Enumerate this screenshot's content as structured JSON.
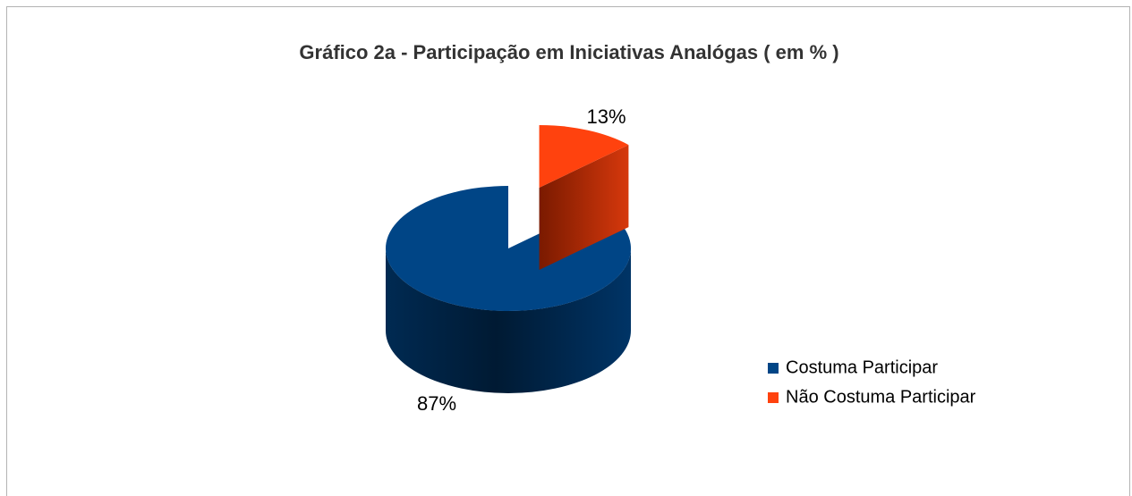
{
  "chart_data": {
    "type": "pie",
    "three_d": true,
    "title": "Gráfico 2a - Participação em Iniciativas Analógas ( em % )",
    "categories": [
      "Costuma Participar",
      "Não Costuma Participar"
    ],
    "values": [
      87,
      13
    ],
    "value_labels": [
      "87%",
      "13%"
    ],
    "colors": [
      "#004586",
      "#ff420e"
    ],
    "legend": "right"
  }
}
